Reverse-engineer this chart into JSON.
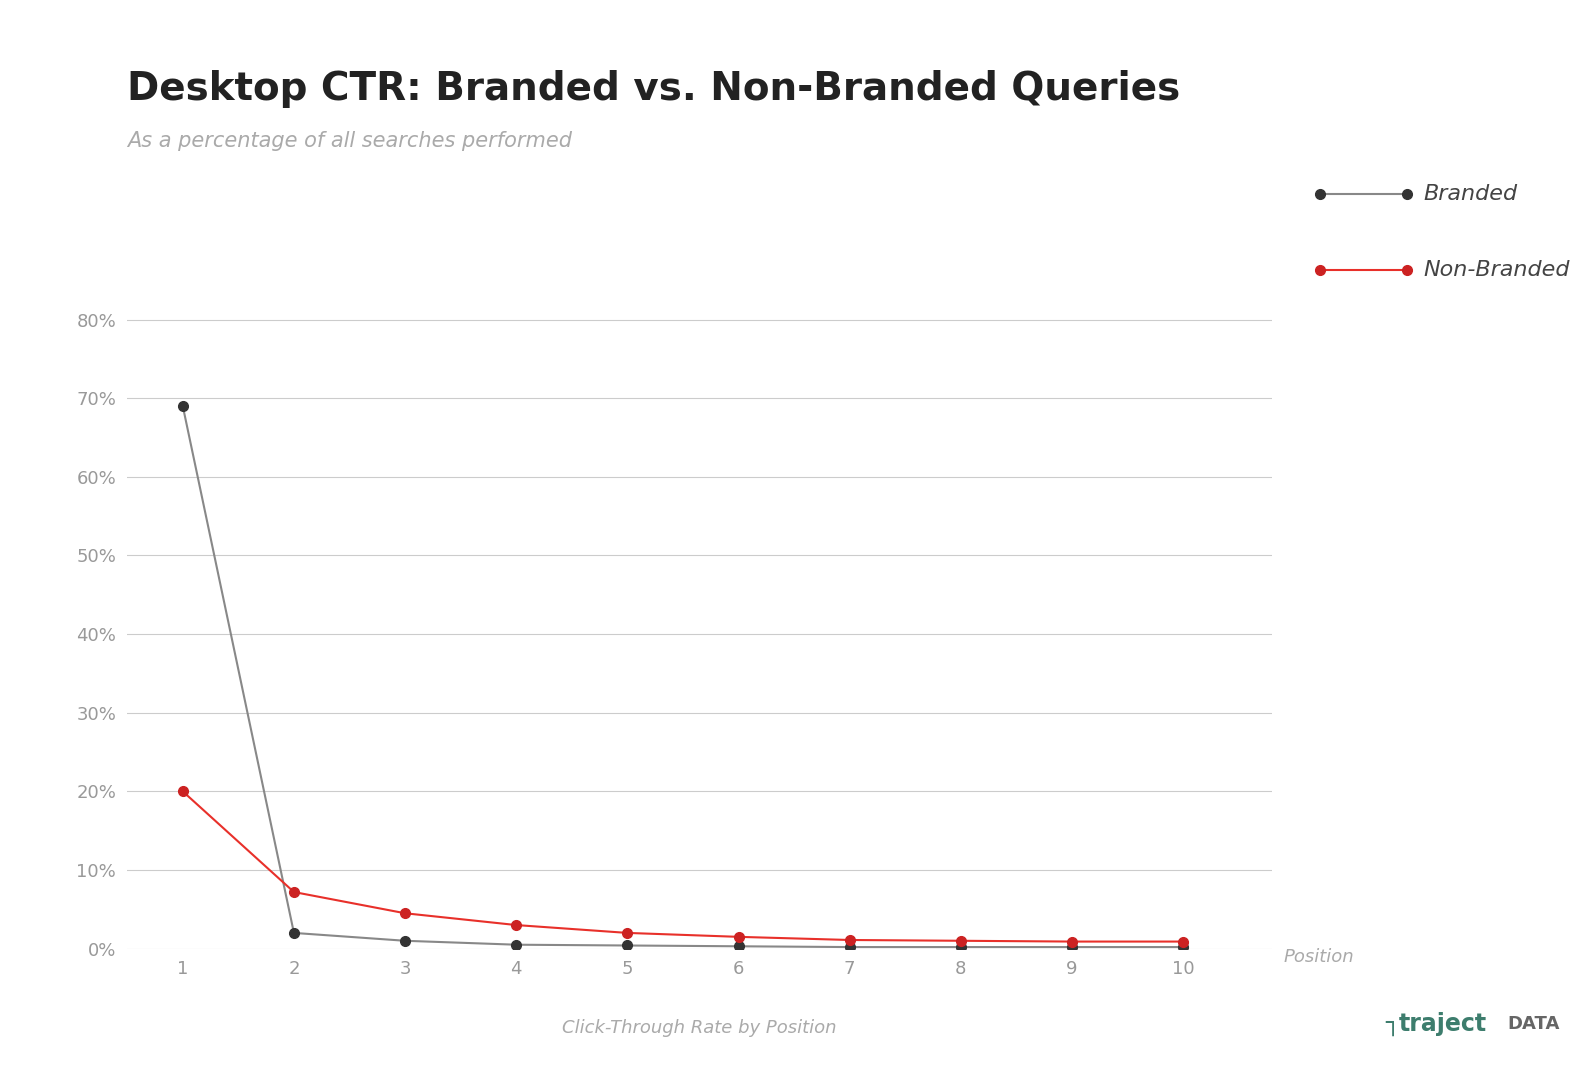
{
  "title": "Desktop CTR: Branded vs. Non-Branded Queries",
  "subtitle": "As a percentage of all searches performed",
  "xlabel": "Click-Through Rate by Position",
  "xlabel_position_label": "Position",
  "positions": [
    1,
    2,
    3,
    4,
    5,
    6,
    7,
    8,
    9,
    10
  ],
  "branded": [
    0.69,
    0.02,
    0.01,
    0.005,
    0.004,
    0.003,
    0.002,
    0.002,
    0.002,
    0.002
  ],
  "non_branded": [
    0.2,
    0.072,
    0.045,
    0.03,
    0.02,
    0.015,
    0.011,
    0.01,
    0.009,
    0.009
  ],
  "branded_color": "#888888",
  "non_branded_color": "#e8302a",
  "marker_color_branded": "#333333",
  "marker_color_non_branded": "#cc2222",
  "line_width": 1.5,
  "marker_size": 7,
  "background_color": "#ffffff",
  "grid_color": "#cccccc",
  "title_fontsize": 28,
  "subtitle_fontsize": 15,
  "tick_label_color": "#999999",
  "tick_fontsize": 13,
  "legend_fontsize": 16,
  "xlabel_fontsize": 13,
  "ylim": [
    0,
    0.85
  ],
  "yticks": [
    0.0,
    0.1,
    0.2,
    0.3,
    0.4,
    0.5,
    0.6,
    0.7,
    0.8
  ],
  "ytick_labels": [
    "0%",
    "10%",
    "20%",
    "30%",
    "40%",
    "50%",
    "60%",
    "70%",
    "80%"
  ],
  "logo_text_traject": "traject",
  "logo_text_data": "DATA",
  "logo_prefix": "┐",
  "logo_color_prefix": "#3d7d6d",
  "logo_color_traject": "#3d7d6d",
  "logo_color_data": "#666666"
}
